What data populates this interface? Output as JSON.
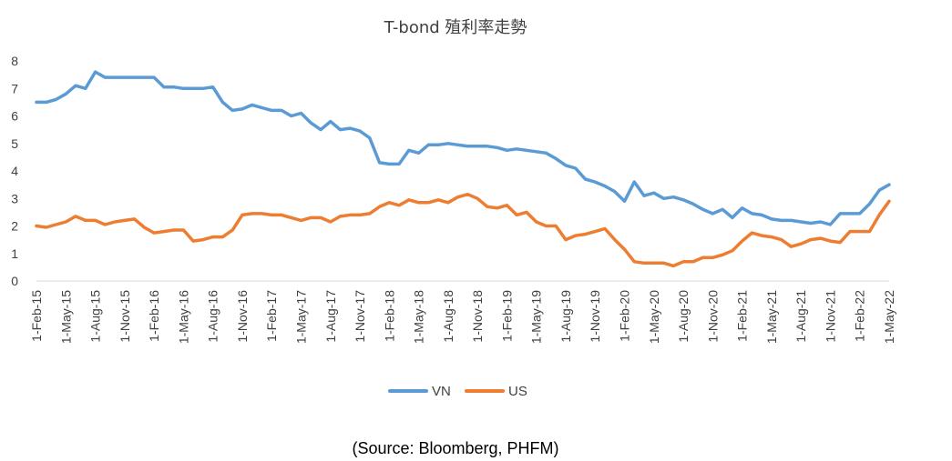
{
  "chart_data": {
    "type": "line",
    "title": "T-bond 殖利率走勢",
    "source_note": "(Source: Bloomberg, PHFM)",
    "xlabel": "",
    "ylabel": "",
    "ylim": [
      0,
      8
    ],
    "yticks": [
      "0",
      "1",
      "2",
      "3",
      "4",
      "5",
      "6",
      "7",
      "8"
    ],
    "x_tick_labels": [
      "1-Feb-15",
      "1-May-15",
      "1-Aug-15",
      "1-Nov-15",
      "1-Feb-16",
      "1-May-16",
      "1-Aug-16",
      "1-Nov-16",
      "1-Feb-17",
      "1-May-17",
      "1-Aug-17",
      "1-Nov-17",
      "1-Feb-18",
      "1-May-18",
      "1-Aug-18",
      "1-Nov-18",
      "1-Feb-19",
      "1-May-19",
      "1-Aug-19",
      "1-Nov-19",
      "1-Feb-20",
      "1-May-20",
      "1-Aug-20",
      "1-Nov-20",
      "1-Feb-21",
      "1-May-21",
      "1-Aug-21",
      "1-Nov-21",
      "1-Feb-22",
      "1-May-22"
    ],
    "grid": false,
    "legend_position": "bottom",
    "series": [
      {
        "name": "VN",
        "color": "#5B9BD5",
        "x": [
          "2015-02",
          "2015-03",
          "2015-04",
          "2015-05",
          "2015-06",
          "2015-07",
          "2015-08",
          "2015-09",
          "2015-10",
          "2015-11",
          "2015-12",
          "2016-01",
          "2016-02",
          "2016-03",
          "2016-04",
          "2016-05",
          "2016-06",
          "2016-07",
          "2016-08",
          "2016-09",
          "2016-10",
          "2016-11",
          "2016-12",
          "2017-01",
          "2017-02",
          "2017-03",
          "2017-04",
          "2017-05",
          "2017-06",
          "2017-07",
          "2017-08",
          "2017-09",
          "2017-10",
          "2017-11",
          "2017-12",
          "2018-01",
          "2018-02",
          "2018-03",
          "2018-04",
          "2018-05",
          "2018-06",
          "2018-07",
          "2018-08",
          "2018-09",
          "2018-10",
          "2018-11",
          "2018-12",
          "2019-01",
          "2019-02",
          "2019-03",
          "2019-04",
          "2019-05",
          "2019-06",
          "2019-07",
          "2019-08",
          "2019-09",
          "2019-10",
          "2019-11",
          "2019-12",
          "2020-01",
          "2020-02",
          "2020-03",
          "2020-04",
          "2020-05",
          "2020-06",
          "2020-07",
          "2020-08",
          "2020-09",
          "2020-10",
          "2020-11",
          "2020-12",
          "2021-01",
          "2021-02",
          "2021-03",
          "2021-04",
          "2021-05",
          "2021-06",
          "2021-07",
          "2021-08",
          "2021-09",
          "2021-10",
          "2021-11",
          "2021-12",
          "2022-01",
          "2022-02",
          "2022-03",
          "2022-04",
          "2022-05"
        ],
        "values": [
          6.5,
          6.5,
          6.6,
          6.8,
          7.1,
          7.0,
          7.6,
          7.4,
          7.4,
          7.4,
          7.4,
          7.4,
          7.4,
          7.05,
          7.05,
          7.0,
          7.0,
          7.0,
          7.05,
          6.5,
          6.2,
          6.25,
          6.4,
          6.3,
          6.2,
          6.2,
          6.0,
          6.1,
          5.75,
          5.5,
          5.8,
          5.5,
          5.55,
          5.45,
          5.2,
          4.3,
          4.25,
          4.25,
          4.75,
          4.65,
          4.95,
          4.95,
          5.0,
          4.95,
          4.9,
          4.9,
          4.9,
          4.85,
          4.75,
          4.8,
          4.75,
          4.7,
          4.65,
          4.45,
          4.2,
          4.1,
          3.7,
          3.6,
          3.45,
          3.25,
          2.9,
          3.6,
          3.1,
          3.2,
          3.0,
          3.05,
          2.95,
          2.8,
          2.6,
          2.45,
          2.6,
          2.3,
          2.65,
          2.45,
          2.4,
          2.25,
          2.2,
          2.2,
          2.15,
          2.1,
          2.15,
          2.05,
          2.45,
          2.45,
          2.45,
          2.8,
          3.3,
          3.5
        ]
      },
      {
        "name": "US",
        "color": "#ED7D31",
        "x": [
          "2015-02",
          "2015-03",
          "2015-04",
          "2015-05",
          "2015-06",
          "2015-07",
          "2015-08",
          "2015-09",
          "2015-10",
          "2015-11",
          "2015-12",
          "2016-01",
          "2016-02",
          "2016-03",
          "2016-04",
          "2016-05",
          "2016-06",
          "2016-07",
          "2016-08",
          "2016-09",
          "2016-10",
          "2016-11",
          "2016-12",
          "2017-01",
          "2017-02",
          "2017-03",
          "2017-04",
          "2017-05",
          "2017-06",
          "2017-07",
          "2017-08",
          "2017-09",
          "2017-10",
          "2017-11",
          "2017-12",
          "2018-01",
          "2018-02",
          "2018-03",
          "2018-04",
          "2018-05",
          "2018-06",
          "2018-07",
          "2018-08",
          "2018-09",
          "2018-10",
          "2018-11",
          "2018-12",
          "2019-01",
          "2019-02",
          "2019-03",
          "2019-04",
          "2019-05",
          "2019-06",
          "2019-07",
          "2019-08",
          "2019-09",
          "2019-10",
          "2019-11",
          "2019-12",
          "2020-01",
          "2020-02",
          "2020-03",
          "2020-04",
          "2020-05",
          "2020-06",
          "2020-07",
          "2020-08",
          "2020-09",
          "2020-10",
          "2020-11",
          "2020-12",
          "2021-01",
          "2021-02",
          "2021-03",
          "2021-04",
          "2021-05",
          "2021-06",
          "2021-07",
          "2021-08",
          "2021-09",
          "2021-10",
          "2021-11",
          "2021-12",
          "2022-01",
          "2022-02",
          "2022-03",
          "2022-04",
          "2022-05"
        ],
        "values": [
          2.0,
          1.95,
          2.05,
          2.15,
          2.35,
          2.2,
          2.2,
          2.05,
          2.15,
          2.2,
          2.25,
          1.95,
          1.75,
          1.8,
          1.85,
          1.85,
          1.45,
          1.5,
          1.6,
          1.6,
          1.85,
          2.4,
          2.45,
          2.45,
          2.4,
          2.4,
          2.3,
          2.2,
          2.3,
          2.3,
          2.15,
          2.35,
          2.4,
          2.4,
          2.45,
          2.7,
          2.85,
          2.75,
          2.95,
          2.85,
          2.85,
          2.95,
          2.85,
          3.05,
          3.15,
          3.0,
          2.7,
          2.65,
          2.75,
          2.4,
          2.5,
          2.15,
          2.0,
          2.0,
          1.5,
          1.65,
          1.7,
          1.8,
          1.9,
          1.5,
          1.15,
          0.7,
          0.65,
          0.65,
          0.65,
          0.55,
          0.7,
          0.7,
          0.85,
          0.85,
          0.95,
          1.1,
          1.45,
          1.75,
          1.65,
          1.6,
          1.5,
          1.25,
          1.35,
          1.5,
          1.55,
          1.45,
          1.4,
          1.8,
          1.8,
          1.8,
          2.4,
          2.9
        ]
      }
    ]
  }
}
